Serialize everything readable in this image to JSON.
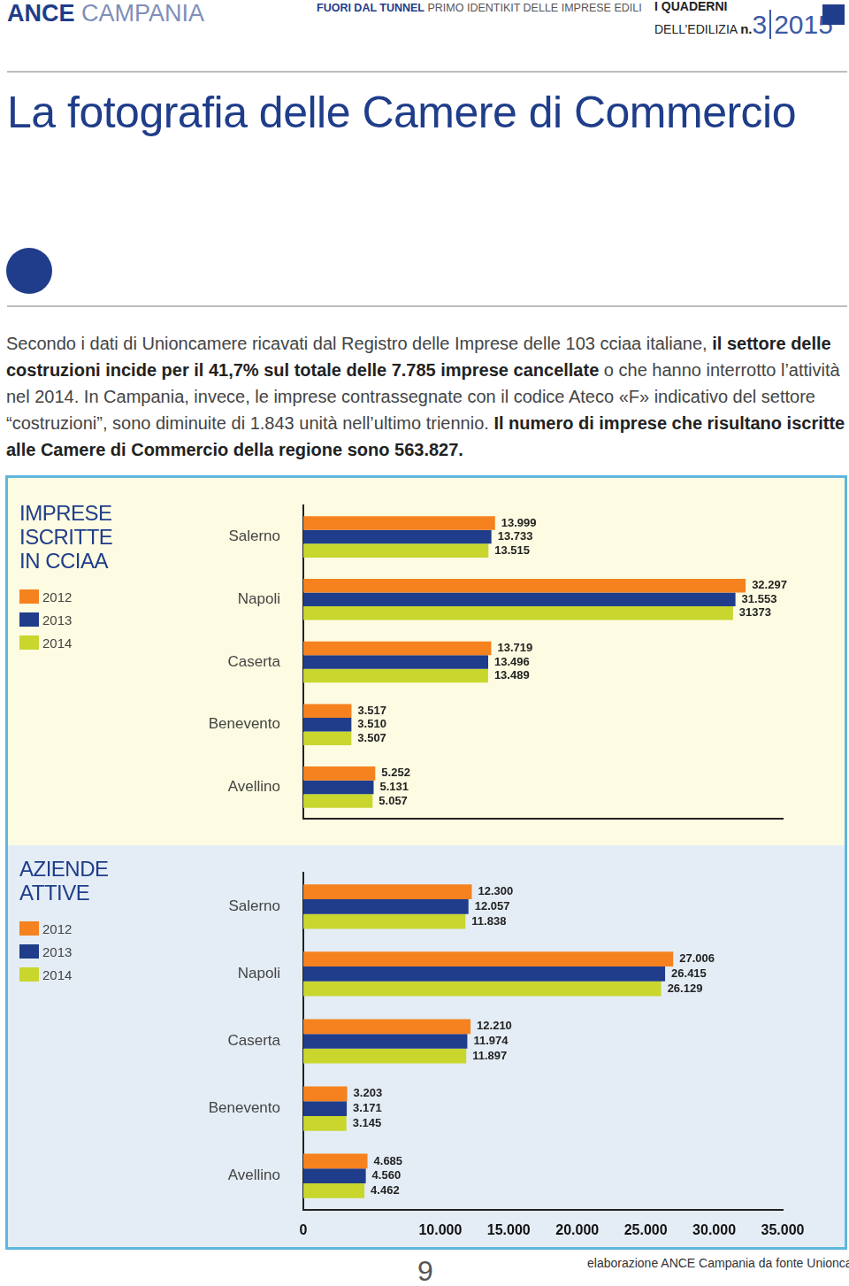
{
  "page": {
    "header": {
      "brand_bold": "ANCE",
      "brand_light": "CAMPANIA",
      "series_bold": "FUORI DAL TUNNEL",
      "series_light": "PRIMO IDENTIKIT DELLE IMPRESE EDILI",
      "collection_line1": "I QUADERNI",
      "collection_line2": "DELL’EDILIZIA",
      "issue_prefix": "n.",
      "issue_number": "3",
      "issue_year": "2015"
    },
    "title": "La fotografia delle Camere di Commercio",
    "paragraph": [
      {
        "text": "Secondo i dati di Unioncamere ricavati dal Registro delle Imprese delle 103 cciaa italiane, ",
        "bold": false
      },
      {
        "text": "il settore delle costruzioni incide per il 41,7% sul totale delle 7.785 imprese cancellate",
        "bold": true
      },
      {
        "text": " o che hanno interrotto l’attività nel 2014. In Campania, invece, le imprese contrassegnate con il codice Ateco «F» indicativo del settore “costruzioni”, sono diminuite di 1.843 unità nell’ultimo triennio. ",
        "bold": false
      },
      {
        "text": "Il numero di imprese che risultano iscritte alle Camere di Commercio della regione sono 563.827.",
        "bold": true
      }
    ],
    "footer": {
      "page_number": "9",
      "source": "elaborazione ANCE Campania da fonte Unioncamere"
    }
  },
  "chart_data": [
    {
      "type": "bar",
      "title": "IMPRESE ISCRITTE IN CCIAA",
      "orientation": "horizontal",
      "categories": [
        "Salerno",
        "Napoli",
        "Caserta",
        "Benevento",
        "Avellino"
      ],
      "series": [
        {
          "name": "2012",
          "color": "#f5821f",
          "values": [
            13999,
            32297,
            13719,
            3517,
            5252
          ],
          "value_labels": [
            "13.999",
            "32.297",
            "13.719",
            "3.517",
            "5.252"
          ]
        },
        {
          "name": "2013",
          "color": "#1f3d8a",
          "values": [
            13733,
            31553,
            13496,
            3510,
            5131
          ],
          "value_labels": [
            "13.733",
            "31.553",
            "13.496",
            "3.510",
            "5.131"
          ]
        },
        {
          "name": "2014",
          "color": "#c8d62e",
          "values": [
            13515,
            31373,
            13489,
            3507,
            5057
          ],
          "value_labels": [
            "13.515",
            "31373",
            "13.489",
            "3.507",
            "5.057"
          ]
        }
      ],
      "xlim": [
        0,
        35000
      ],
      "grid": false,
      "data_labels": true,
      "tick_labels": "y",
      "legend": "left"
    },
    {
      "type": "bar",
      "title": "AZIENDE ATTIVE",
      "orientation": "horizontal",
      "categories": [
        "Salerno",
        "Napoli",
        "Caserta",
        "Benevento",
        "Avellino"
      ],
      "series": [
        {
          "name": "2012",
          "color": "#f5821f",
          "values": [
            12300,
            27006,
            12210,
            3203,
            4685
          ],
          "value_labels": [
            "12.300",
            "27.006",
            "12.210",
            "3.203",
            "4.685"
          ]
        },
        {
          "name": "2013",
          "color": "#1f3d8a",
          "values": [
            12057,
            26415,
            11974,
            3171,
            4560
          ],
          "value_labels": [
            "12.057",
            "26.415",
            "11.974",
            "3.171",
            "4.560"
          ]
        },
        {
          "name": "2014",
          "color": "#c8d62e",
          "values": [
            11838,
            26129,
            11897,
            3145,
            4462
          ],
          "value_labels": [
            "11.838",
            "26.129",
            "11.897",
            "3.145",
            "4.462"
          ]
        }
      ],
      "xlim": [
        0,
        35000
      ],
      "xticks": [
        0,
        {
          "value": 10000,
          "label": "10.000"
        },
        {
          "value": 15000,
          "label": "15.000"
        },
        {
          "value": 20000,
          "label": "20.000"
        },
        {
          "value": 25000,
          "label": "25.000"
        },
        {
          "value": 30000,
          "label": "30.000"
        },
        {
          "value": 35000,
          "label": "35.000"
        }
      ],
      "grid": false,
      "data_labels": true,
      "tick_labels": true,
      "legend": "left"
    }
  ]
}
